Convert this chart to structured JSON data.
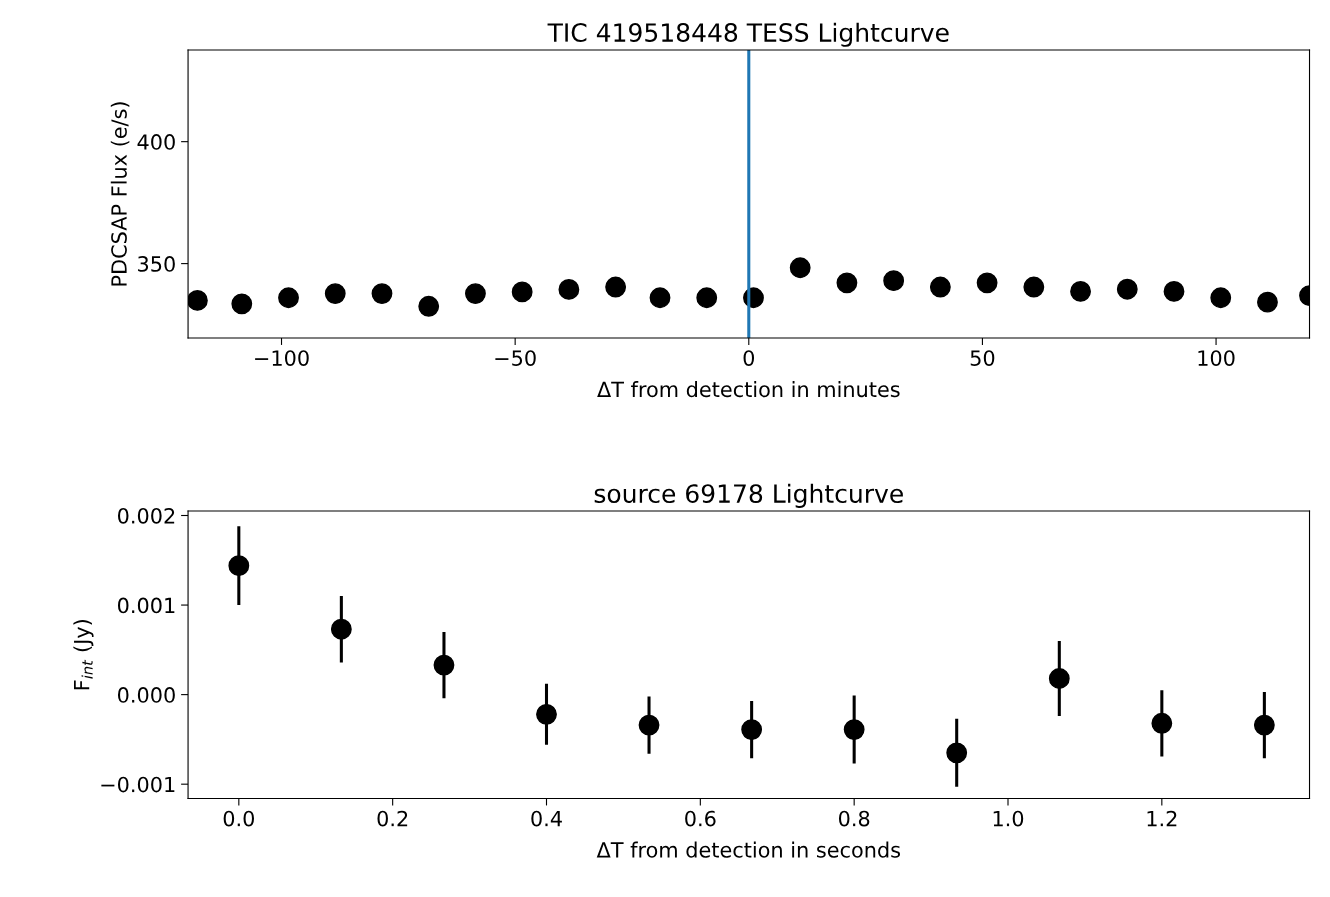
{
  "chart_data": [
    {
      "type": "scatter",
      "title": "TIC 419518448 TESS Lightcurve",
      "xlabel": "ΔT from detection in minutes",
      "ylabel": "PDCSAP Flux (e/s)",
      "x": [
        -118,
        -108.5,
        -98.5,
        -88.5,
        -78.5,
        -68.5,
        -58.5,
        -48.5,
        -38.5,
        -28.5,
        -19,
        -9,
        1,
        11,
        21,
        31,
        41,
        51,
        61,
        71,
        81,
        91,
        101,
        111,
        120
      ],
      "series": [
        {
          "color": "#000000",
          "values": [
            334.9,
            333.5,
            336.0,
            337.7,
            337.7,
            332.5,
            337.7,
            338.4,
            339.4,
            340.4,
            336.0,
            336.0,
            336.0,
            348.3,
            342.1,
            343.0,
            340.4,
            342.1,
            340.4,
            338.6,
            339.5,
            338.6,
            336.0,
            334.2,
            336.9
          ]
        }
      ],
      "marker": "circle",
      "xlim": [
        -120,
        120
      ],
      "ylim": [
        319.5,
        437.6
      ],
      "xticks": [
        {
          "value": -100,
          "label": "−100"
        },
        {
          "value": -50,
          "label": "−50"
        },
        0,
        50,
        100
      ],
      "yticks": [
        350,
        400
      ],
      "ref_lines": [
        {
          "axis": "x",
          "value": 0,
          "color": "#1f77b4"
        }
      ]
    },
    {
      "type": "scatter",
      "title": "source 69178 Lightcurve",
      "xlabel": "ΔT from detection in seconds",
      "ylabel": "F$_{int}$ (Jy)",
      "x": [
        0,
        0.1333,
        0.2667,
        0.4,
        0.5333,
        0.6667,
        0.8,
        0.9333,
        1.0667,
        1.2,
        1.3333
      ],
      "series": [
        {
          "color": "#000000",
          "values": [
            0.00144,
            0.00073,
            0.00033,
            -0.00022,
            -0.00034,
            -0.00039,
            -0.00039,
            -0.00065,
            0.00018,
            -0.00032,
            -0.00034
          ],
          "errors": [
            0.00044,
            0.00037,
            0.00037,
            0.00034,
            0.00032,
            0.00032,
            0.00038,
            0.00038,
            0.00042,
            0.00037,
            0.00037
          ]
        }
      ],
      "marker": "circle",
      "xlim": [
        -0.066,
        1.392
      ],
      "ylim": [
        -0.00116,
        0.00205
      ],
      "xticks": [
        {
          "value": 0,
          "label": "0.0"
        },
        {
          "value": 0.2,
          "label": "0.2"
        },
        {
          "value": 0.4,
          "label": "0.4"
        },
        {
          "value": 0.6,
          "label": "0.6"
        },
        {
          "value": 0.8,
          "label": "0.8"
        },
        {
          "value": 1.0,
          "label": "1.0"
        },
        {
          "value": 1.2,
          "label": "1.2"
        }
      ],
      "yticks": [
        {
          "value": -0.001,
          "label": "−0.001"
        },
        {
          "value": 0,
          "label": "0.000"
        },
        {
          "value": 0.001,
          "label": "0.001"
        },
        {
          "value": 0.002,
          "label": "0.002"
        }
      ]
    }
  ]
}
